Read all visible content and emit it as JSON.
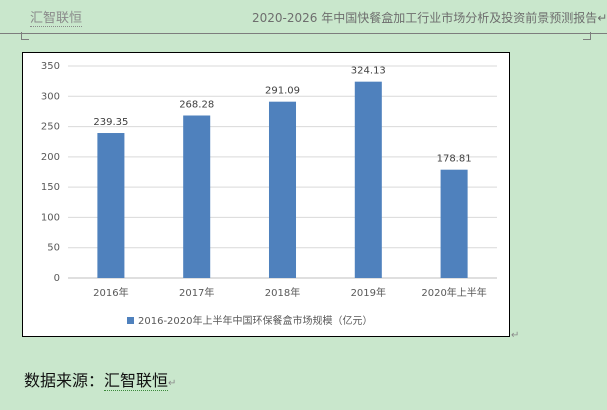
{
  "header": {
    "org": "汇智联恒",
    "report_title": "2020-2026 年中国快餐盒加工行业市场分析及投资前景预测报告",
    "para_mark": "↵"
  },
  "chart_data": {
    "type": "bar",
    "categories": [
      "2016年",
      "2017年",
      "2018年",
      "2019年",
      "2020年上半年"
    ],
    "series": [
      {
        "name": "2016-2020年上半年中国环保餐盒市场规模（亿元）",
        "values": [
          239.35,
          268.28,
          291.09,
          324.13,
          178.81
        ],
        "color": "#4f81bd"
      }
    ],
    "data_labels": [
      "239.35",
      "268.28",
      "291.09",
      "324.13",
      "178.81"
    ],
    "yticks": [
      "0",
      "50",
      "100",
      "150",
      "200",
      "250",
      "300",
      "350"
    ],
    "ylim": [
      0,
      350
    ],
    "grid": true,
    "legend_position": "bottom",
    "title": "",
    "xlabel": "",
    "ylabel": ""
  },
  "chart_para_mark": "↵",
  "source": {
    "label": "数据来源：",
    "org": "汇智联恒",
    "para_mark": "↵"
  }
}
